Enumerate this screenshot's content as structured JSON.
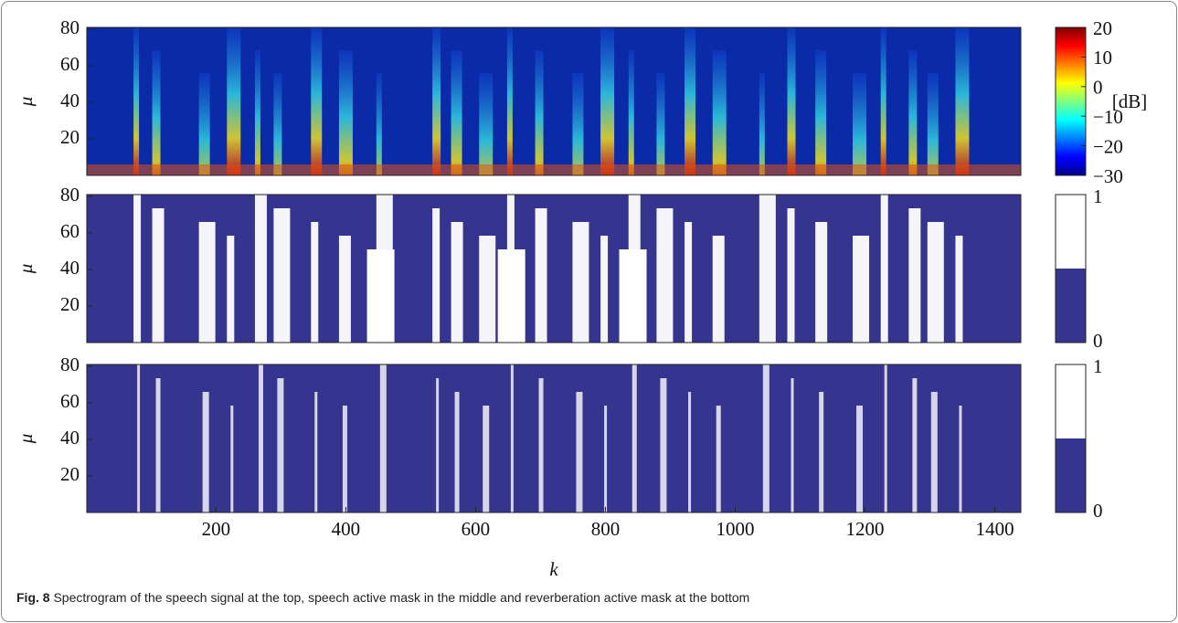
{
  "figure": {
    "caption_label": "Fig. 8",
    "caption": "Spectrogram of the speech signal at the top, speech active mask in the middle and reverberation active mask at the bottom"
  },
  "chart_data": [
    {
      "type": "heatmap",
      "ylabel": "μ",
      "xlim": [
        1,
        1440
      ],
      "ylim": [
        0,
        81
      ],
      "yticks": [
        20,
        40,
        60,
        80
      ],
      "colormap": "jet",
      "colorbar": {
        "label": "[dB]",
        "lim": [
          -30,
          20
        ],
        "ticks": [
          20,
          10,
          0,
          {
            "value": -10,
            "label": "−10"
          },
          {
            "value": -20,
            "label": "−20"
          },
          {
            "value": -30,
            "label": "−30"
          }
        ]
      }
    },
    {
      "type": "heatmap",
      "ylabel": "μ",
      "xlim": [
        1,
        1440
      ],
      "ylim": [
        0,
        81
      ],
      "yticks": [
        20,
        40,
        60,
        80
      ],
      "colors": [
        "#35348e",
        "#ffffff"
      ],
      "colorbar": {
        "lim": [
          0,
          1
        ],
        "ticks": [
          0,
          1
        ]
      }
    },
    {
      "type": "heatmap",
      "ylabel": "μ",
      "xlabel": "k",
      "xlim": [
        1,
        1440
      ],
      "ylim": [
        0,
        81
      ],
      "yticks": [
        20,
        40,
        60,
        80
      ],
      "xticks": [
        200,
        400,
        600,
        800,
        1000,
        1200,
        1400
      ],
      "colors": [
        "#35348e",
        "#ffffff"
      ],
      "colorbar": {
        "lim": [
          0,
          1
        ],
        "ticks": [
          0,
          1
        ]
      }
    }
  ]
}
